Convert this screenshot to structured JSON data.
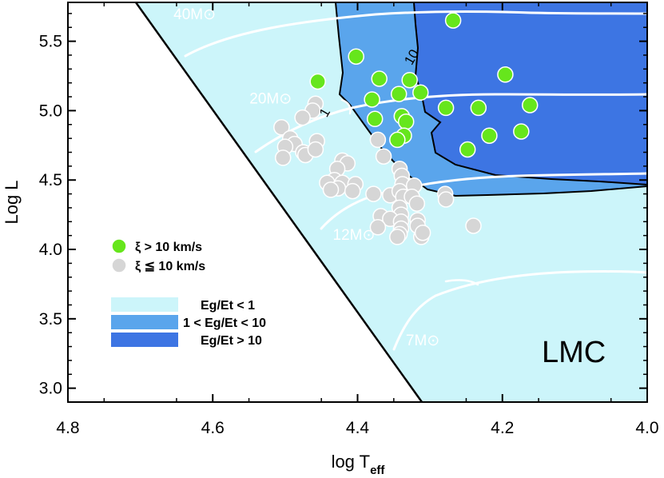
{
  "chart_data": {
    "type": "scatter",
    "title": "",
    "xlabel": "log T",
    "xlabel_sub": "eff",
    "ylabel": "Log L",
    "xlim": [
      4.8,
      4.0
    ],
    "ylim": [
      2.9,
      5.78
    ],
    "x_reversed": true,
    "xticks": [
      "4.8",
      "4.6",
      "4.4",
      "4.2",
      "4.0"
    ],
    "xtick_values": [
      4.8,
      4.6,
      4.4,
      4.2,
      4.0
    ],
    "yticks": [
      "3.0",
      "3.5",
      "4.0",
      "4.5",
      "5.0",
      "5.5"
    ],
    "ytick_values": [
      3.0,
      3.5,
      4.0,
      4.5,
      5.0,
      5.5
    ],
    "panel_label": "LMC",
    "colors": {
      "light_region": "#ccf5fa",
      "medium_region": "#5aa5ec",
      "dark_region": "#3d75e3",
      "green_points": "#66e61c",
      "grey_points": "#d6d6d6",
      "tracks": "#ffffff"
    },
    "regions_legend": [
      {
        "label": "Eg/Et < 1",
        "color": "#ccf5fa"
      },
      {
        "label": "1 < Eg/Et < 10",
        "color": "#5aa5ec"
      },
      {
        "label": "Eg/Et > 10",
        "color": "#3d75e3"
      }
    ],
    "points_legend": [
      {
        "label": "ξ > 10 km/s",
        "color": "#66e61c"
      },
      {
        "label": "ξ ≦ 10 km/s",
        "color": "#d6d6d6"
      }
    ],
    "contour_labels": [
      {
        "text": "1",
        "x": 4.44,
        "y": 4.97
      },
      {
        "text": "10",
        "x": 4.32,
        "y": 5.37
      }
    ],
    "track_labels": [
      {
        "text": "40M⊙",
        "x": 4.625,
        "y": 5.66
      },
      {
        "text": "20M⊙",
        "x": 4.52,
        "y": 5.05
      },
      {
        "text": "12M⊙",
        "x": 4.405,
        "y": 4.07
      },
      {
        "text": "7M⊙",
        "x": 4.31,
        "y": 3.31
      }
    ],
    "series": [
      {
        "name": "ξ > 10 km/s",
        "points": [
          [
            4.268,
            5.65
          ],
          [
            4.402,
            5.39
          ],
          [
            4.455,
            5.21
          ],
          [
            4.37,
            5.23
          ],
          [
            4.328,
            5.22
          ],
          [
            4.196,
            5.26
          ],
          [
            4.38,
            5.08
          ],
          [
            4.343,
            5.12
          ],
          [
            4.313,
            5.13
          ],
          [
            4.278,
            5.02
          ],
          [
            4.233,
            5.02
          ],
          [
            4.162,
            5.04
          ],
          [
            4.376,
            4.94
          ],
          [
            4.339,
            4.96
          ],
          [
            4.333,
            4.92
          ],
          [
            4.218,
            4.82
          ],
          [
            4.174,
            4.85
          ],
          [
            4.336,
            4.82
          ],
          [
            4.345,
            4.79
          ],
          [
            4.248,
            4.72
          ]
        ]
      },
      {
        "name": "ξ ≦ 10 km/s",
        "points": [
          [
            4.458,
            5.05
          ],
          [
            4.462,
            5.0
          ],
          [
            4.476,
            4.95
          ],
          [
            4.505,
            4.88
          ],
          [
            4.493,
            4.8
          ],
          [
            4.487,
            4.76
          ],
          [
            4.5,
            4.74
          ],
          [
            4.475,
            4.7
          ],
          [
            4.472,
            4.68
          ],
          [
            4.503,
            4.66
          ],
          [
            4.456,
            4.78
          ],
          [
            4.458,
            4.72
          ],
          [
            4.372,
            4.79
          ],
          [
            4.364,
            4.67
          ],
          [
            4.421,
            4.64
          ],
          [
            4.414,
            4.62
          ],
          [
            4.428,
            4.58
          ],
          [
            4.432,
            4.5
          ],
          [
            4.442,
            4.48
          ],
          [
            4.421,
            4.48
          ],
          [
            4.403,
            4.47
          ],
          [
            4.427,
            4.44
          ],
          [
            4.437,
            4.43
          ],
          [
            4.407,
            4.42
          ],
          [
            4.378,
            4.4
          ],
          [
            4.355,
            4.39
          ],
          [
            4.342,
            4.58
          ],
          [
            4.339,
            4.53
          ],
          [
            4.338,
            4.47
          ],
          [
            4.322,
            4.46
          ],
          [
            4.342,
            4.42
          ],
          [
            4.337,
            4.38
          ],
          [
            4.325,
            4.38
          ],
          [
            4.279,
            4.4
          ],
          [
            4.278,
            4.36
          ],
          [
            4.318,
            4.33
          ],
          [
            4.342,
            4.3
          ],
          [
            4.34,
            4.25
          ],
          [
            4.368,
            4.24
          ],
          [
            4.355,
            4.22
          ],
          [
            4.34,
            4.2
          ],
          [
            4.317,
            4.21
          ],
          [
            4.317,
            4.17
          ],
          [
            4.34,
            4.15
          ],
          [
            4.372,
            4.16
          ],
          [
            4.342,
            4.11
          ],
          [
            4.312,
            4.09
          ],
          [
            4.345,
            4.09
          ],
          [
            4.31,
            4.12
          ],
          [
            4.24,
            4.17
          ]
        ]
      }
    ]
  }
}
